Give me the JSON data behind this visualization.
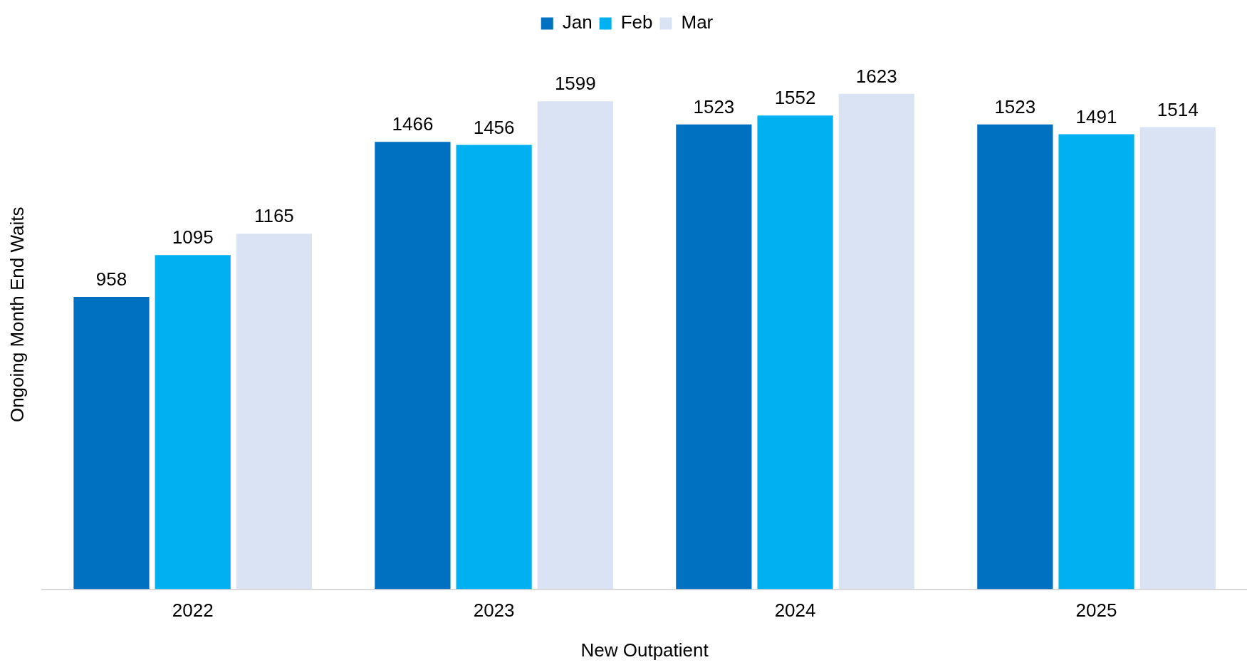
{
  "chart_data": {
    "type": "bar",
    "xlabel": "New Outpatient",
    "ylabel": "Ongoing Month End Waits",
    "categories": [
      "2022",
      "2023",
      "2024",
      "2025"
    ],
    "series": [
      {
        "name": "Jan",
        "color": "#0070c0",
        "values": [
          958,
          1466,
          1523,
          1523
        ]
      },
      {
        "name": "Feb",
        "color": "#00b0f0",
        "values": [
          1095,
          1456,
          1552,
          1491
        ]
      },
      {
        "name": "Mar",
        "color": "#dae3f3",
        "values": [
          1165,
          1599,
          1623,
          1514
        ]
      }
    ],
    "data_labels": true,
    "legend": "top",
    "grid": false
  }
}
